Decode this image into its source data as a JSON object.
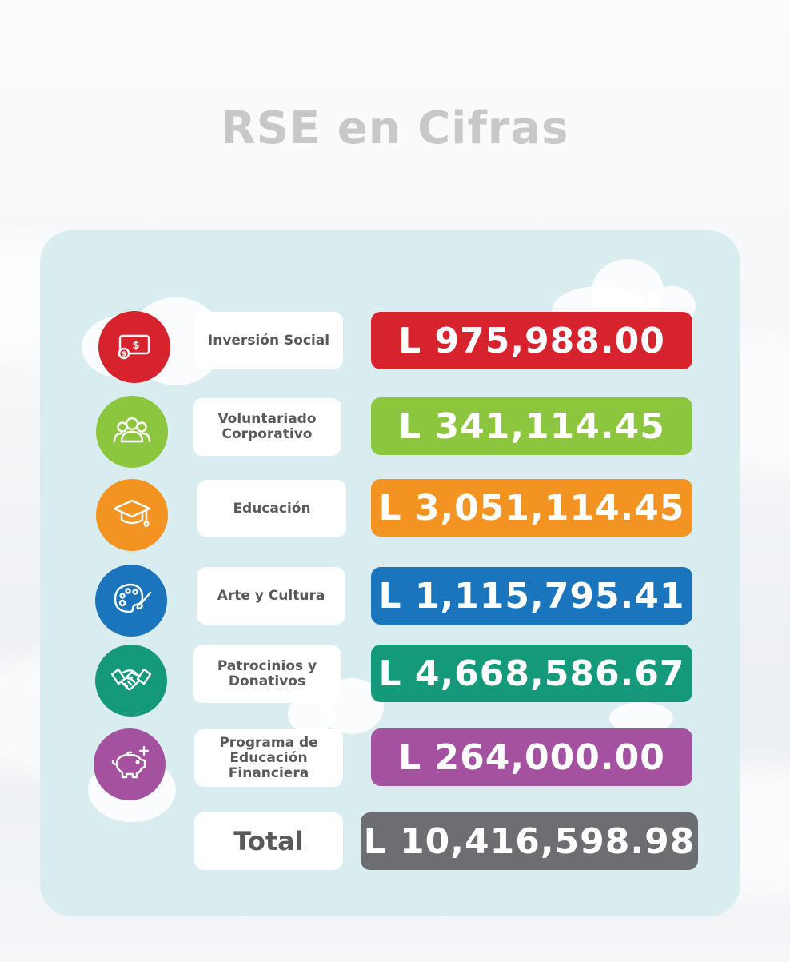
{
  "title": "RSE en Cifras",
  "items": [
    {
      "label": "Inversión Social",
      "value": "L 975,988.00",
      "color": "#d7232d",
      "icon": "money-icon"
    },
    {
      "label": "Voluntariado\nCorporativo",
      "value": "L 341,114.45",
      "color": "#8cc63f",
      "icon": "people-icon"
    },
    {
      "label": "Educación",
      "value": "L 3,051,114.45",
      "color": "#f39321",
      "icon": "graduation-cap-icon"
    },
    {
      "label": "Arte y Cultura",
      "value": "L 1,115,795.41",
      "color": "#1b75bc",
      "icon": "palette-icon"
    },
    {
      "label": "Patrocinios y\nDonativos",
      "value": "L 4,668,586.67",
      "color": "#149a7b",
      "icon": "handshake-icon"
    },
    {
      "label": "Programa de\nEducación\nFinanciera",
      "value": "L 264,000.00",
      "color": "#a4519f",
      "icon": "piggy-bank-icon"
    }
  ],
  "total": {
    "label": "Total",
    "value": "L 10,416,598.98",
    "color": "#6d6e71"
  }
}
